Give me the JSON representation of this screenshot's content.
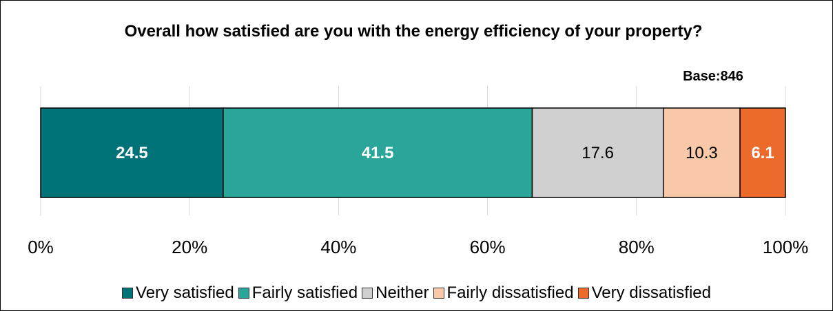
{
  "chart_data": {
    "type": "bar",
    "orientation": "horizontal-stacked",
    "title": "Overall how satisfied are you with the energy efficiency of your property?",
    "annotation": "Base:846",
    "series": [
      {
        "name": "Very satisfied",
        "value": 24.5,
        "label": "24.5",
        "color": "#007378",
        "label_color": "#ffffff",
        "label_bold": true
      },
      {
        "name": "Fairly satisfied",
        "value": 41.5,
        "label": "41.5",
        "color": "#2aa59a",
        "label_color": "#ffffff",
        "label_bold": true
      },
      {
        "name": "Neither",
        "value": 17.6,
        "label": "17.6",
        "color": "#d0d0d0",
        "label_color": "#000000",
        "label_bold": false
      },
      {
        "name": "Fairly dissatisfied",
        "value": 10.3,
        "label": "10.3",
        "color": "#f8c8a8",
        "label_color": "#000000",
        "label_bold": false
      },
      {
        "name": "Very dissatisfied",
        "value": 6.1,
        "label": "6.1",
        "color": "#ec6b2c",
        "label_color": "#ffffff",
        "label_bold": true
      }
    ],
    "x_ticks": [
      "0%",
      "20%",
      "40%",
      "60%",
      "80%",
      "100%"
    ],
    "xlim": [
      0,
      100
    ],
    "grid": true,
    "legend": "bottom"
  }
}
